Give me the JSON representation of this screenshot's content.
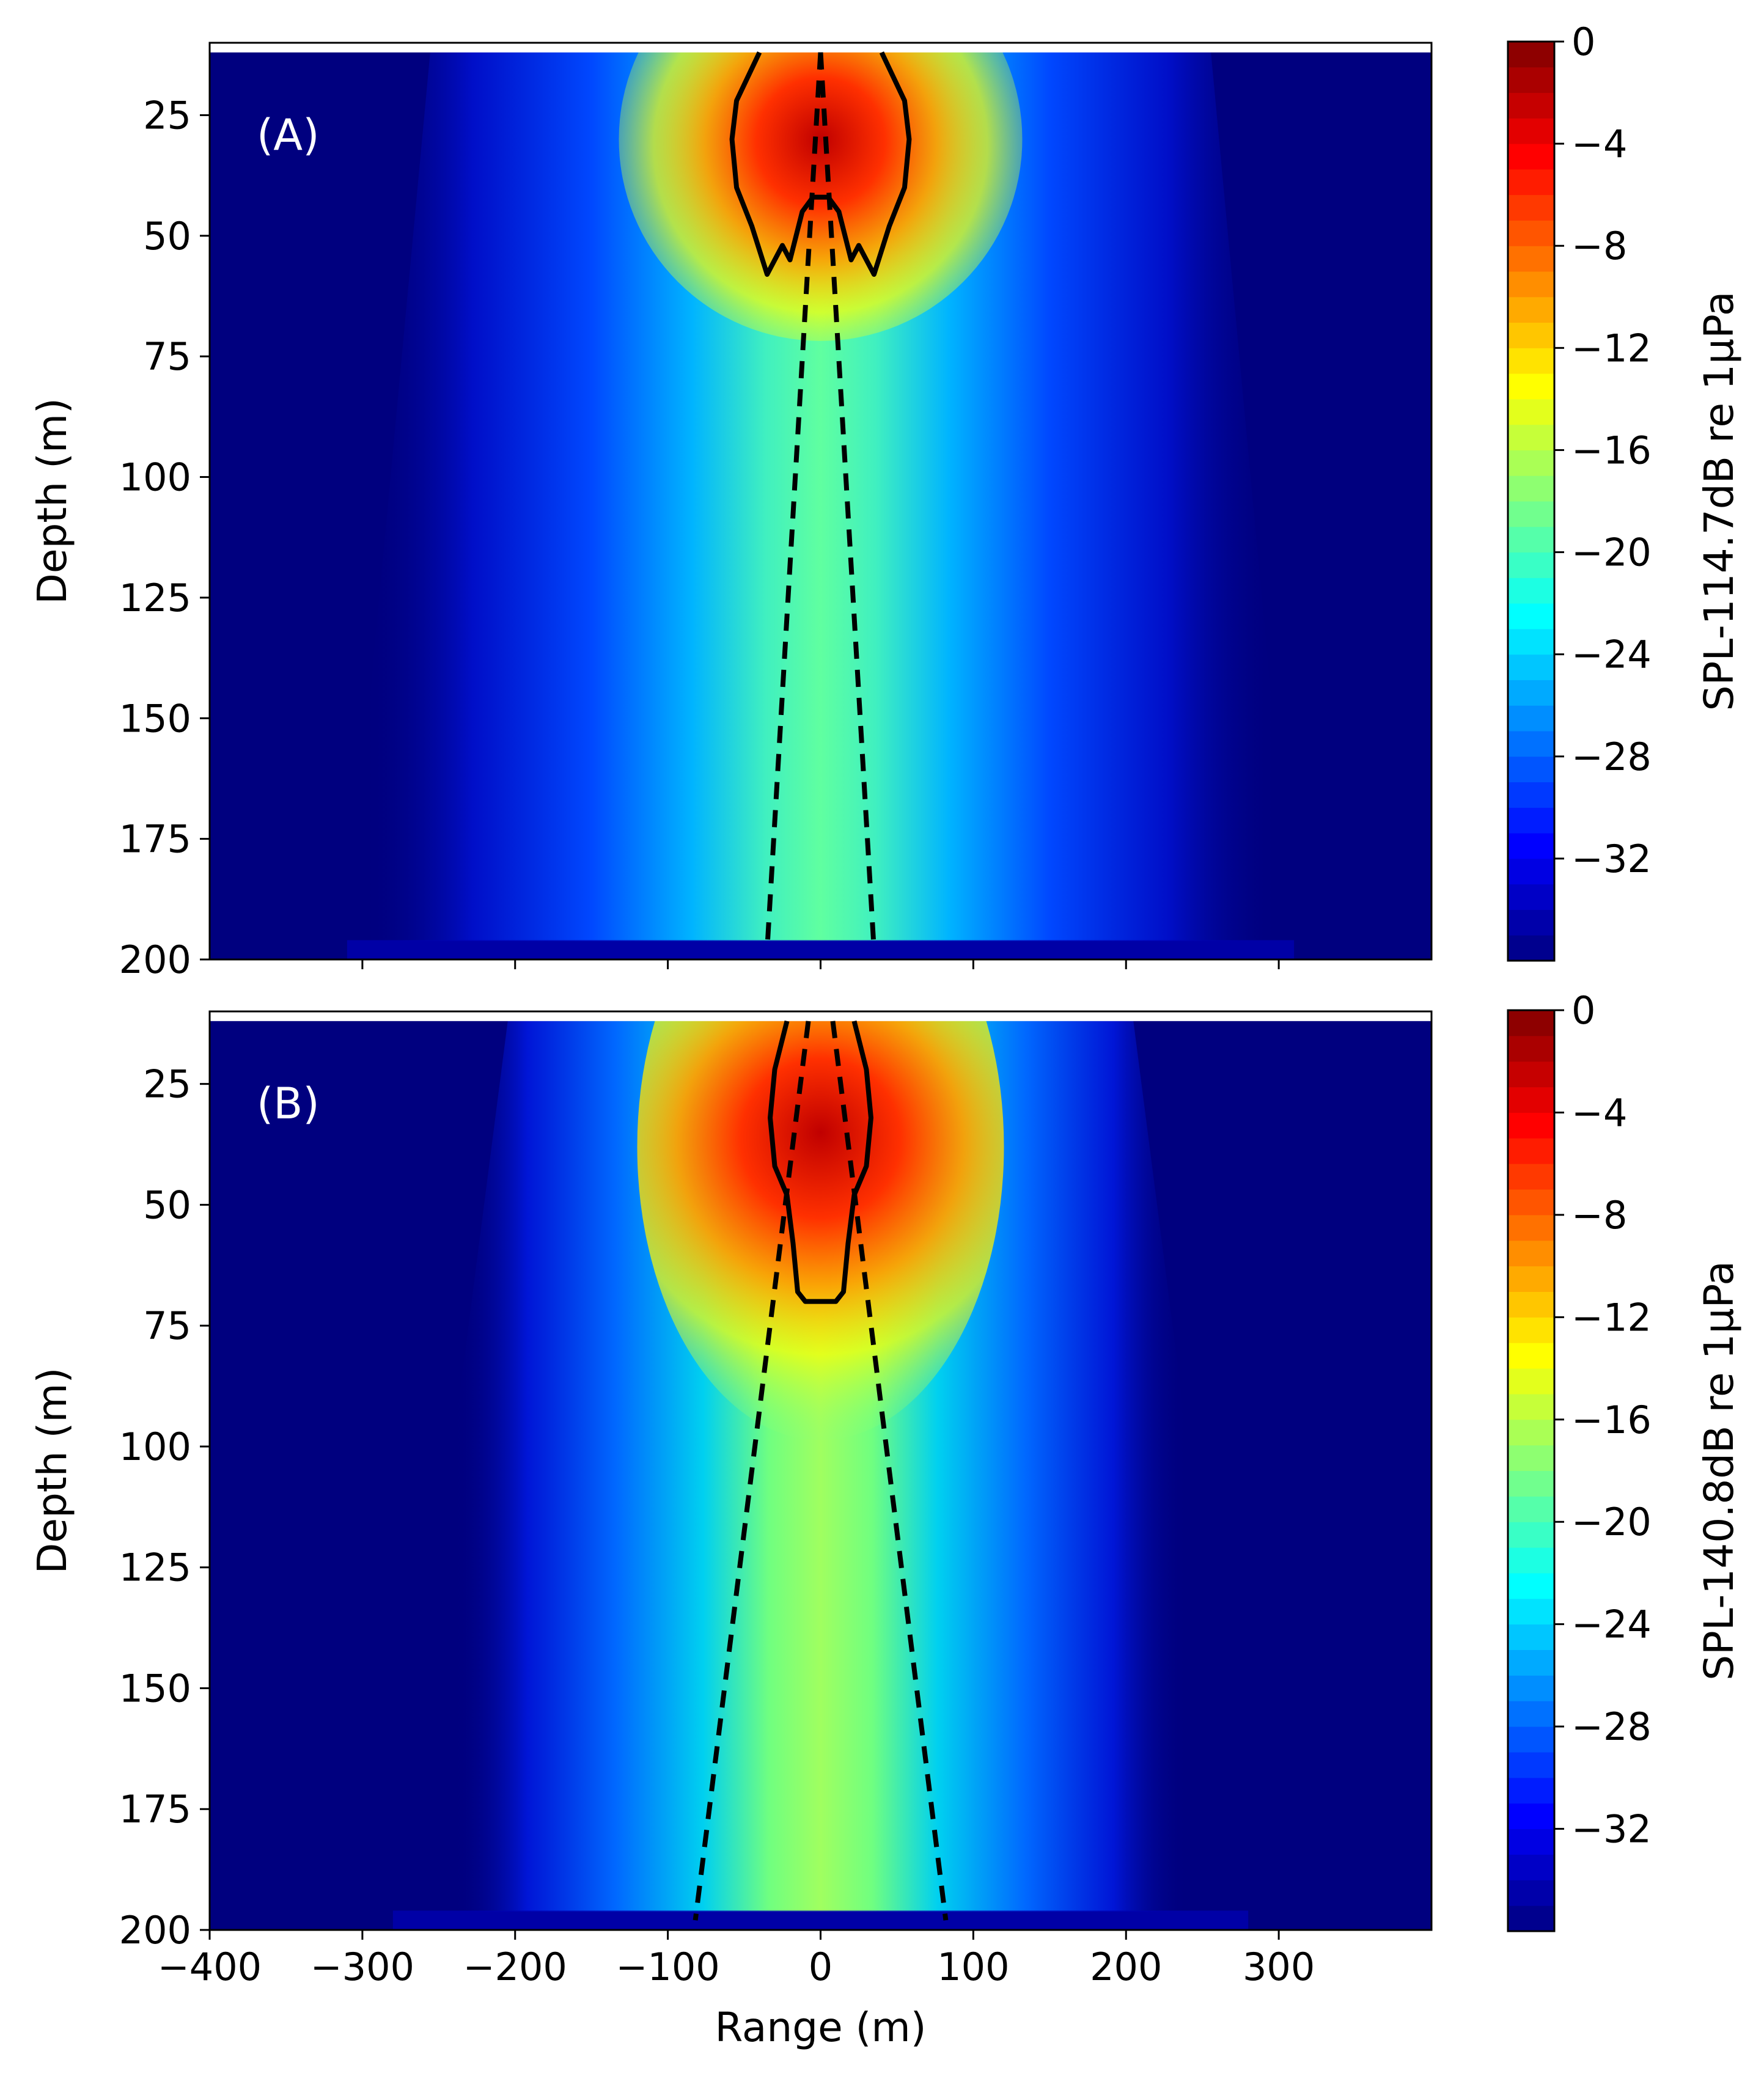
{
  "chart_data": [
    {
      "type": "heatmap",
      "panel_label": "(A)",
      "xlabel": "",
      "ylabel": "Depth (m)",
      "xlim": [
        -400,
        400
      ],
      "ylim": [
        200,
        10
      ],
      "x_ticks": [
        -300,
        -200,
        -100,
        0,
        100,
        200,
        300
      ],
      "y_ticks": [
        25,
        50,
        75,
        100,
        125,
        150,
        175,
        200
      ],
      "colorbar": {
        "label": "SPL-114.7dB re 1μPa",
        "range": [
          -36,
          0
        ],
        "ticks": [
          0,
          -4,
          -8,
          -12,
          -16,
          -20,
          -24,
          -28,
          -32
        ],
        "tick_labels": [
          "0",
          "−4",
          "−8",
          "−12",
          "−16",
          "−20",
          "−24",
          "−28",
          "−32"
        ],
        "colormap": "jet"
      },
      "beam_outer_half_width_at_surface": 300,
      "beam_outer_half_width_at_bottom": 310,
      "dashed_lines": [
        {
          "x": [
            0,
            -35
          ],
          "y": [
            12,
            198
          ]
        },
        {
          "x": [
            0,
            35
          ],
          "y": [
            12,
            198
          ]
        }
      ],
      "contour": {
        "x": [
          -40,
          -55,
          -58,
          -55,
          -45,
          -35,
          -25,
          -20,
          -12,
          -5,
          0,
          5,
          12,
          20,
          25,
          35,
          45,
          55,
          58,
          55,
          40
        ],
        "y": [
          12,
          22,
          30,
          40,
          48,
          58,
          52,
          55,
          45,
          42,
          42,
          42,
          45,
          55,
          52,
          58,
          48,
          40,
          30,
          22,
          12
        ]
      }
    },
    {
      "type": "heatmap",
      "panel_label": "(B)",
      "xlabel": "Range (m)",
      "ylabel": "Depth (m)",
      "xlim": [
        -400,
        400
      ],
      "ylim": [
        200,
        10
      ],
      "x_ticks": [
        -400,
        -300,
        -200,
        -100,
        0,
        100,
        200,
        300
      ],
      "x_tick_labels": [
        "−400",
        "−300",
        "−200",
        "−100",
        "0",
        "100",
        "200",
        "300"
      ],
      "y_ticks": [
        25,
        50,
        75,
        100,
        125,
        150,
        175,
        200
      ],
      "colorbar": {
        "label": "SPL-140.8dB re 1μPa",
        "range": [
          -36,
          0
        ],
        "ticks": [
          0,
          -4,
          -8,
          -12,
          -16,
          -20,
          -24,
          -28,
          -32
        ],
        "tick_labels": [
          "0",
          "−4",
          "−8",
          "−12",
          "−16",
          "−20",
          "−24",
          "−28",
          "−32"
        ],
        "colormap": "jet"
      },
      "beam_outer_half_width_at_surface": 240,
      "beam_outer_half_width_at_bottom": 280,
      "dashed_lines": [
        {
          "x": [
            -8,
            -82
          ],
          "y": [
            12,
            198
          ]
        },
        {
          "x": [
            8,
            82
          ],
          "y": [
            12,
            198
          ]
        }
      ],
      "contour": {
        "x": [
          -22,
          -30,
          -33,
          -30,
          -22,
          -18,
          -15,
          -10,
          0,
          10,
          15,
          18,
          22,
          30,
          33,
          30,
          22
        ],
        "y": [
          12,
          22,
          32,
          42,
          48,
          58,
          68,
          70,
          70,
          70,
          68,
          58,
          48,
          42,
          32,
          22,
          12
        ]
      }
    }
  ]
}
